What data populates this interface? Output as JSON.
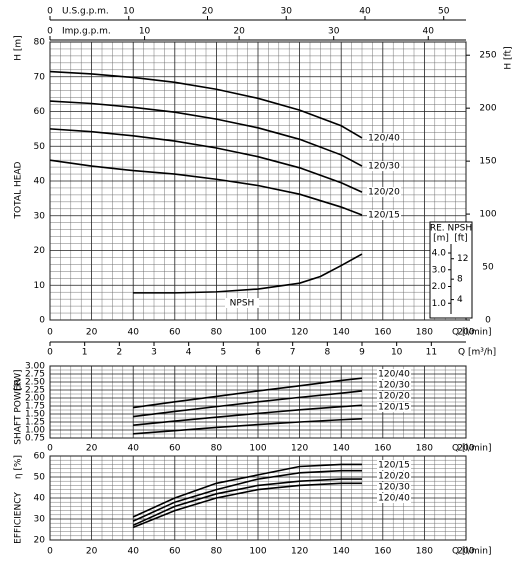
{
  "chart_data": [
    {
      "type": "line",
      "y_title": "H [m]",
      "y_label": "TOTAL HEAD",
      "y2_title": "H [ft]",
      "x_label": "Q [l/min]",
      "xlim": [
        0,
        200
      ],
      "xticks": [
        0,
        20,
        40,
        60,
        80,
        100,
        120,
        140,
        160,
        180,
        200
      ],
      "ylim": [
        0,
        80
      ],
      "yticks": [
        0,
        10,
        20,
        30,
        40,
        50,
        60,
        70,
        80
      ],
      "y2lim": [
        0,
        262.47
      ],
      "y2ticks": [
        0,
        50,
        100,
        150,
        200,
        250
      ],
      "grid": true,
      "x_minor_divisions": 4,
      "y_minor_divisions": 5,
      "x_top_axes": [
        {
          "label": "U.S.g.p.m.",
          "lim": [
            0,
            52.83
          ],
          "ticks": [
            0,
            10,
            20,
            30,
            40,
            50
          ]
        },
        {
          "label": "Imp.g.p.m.",
          "lim": [
            0,
            43.99
          ],
          "ticks": [
            0,
            10,
            20,
            30,
            40
          ]
        }
      ],
      "x_bottom2": {
        "label": "Q [m³/h]",
        "lim": [
          0,
          12
        ],
        "ticks": [
          0,
          1,
          2,
          3,
          4,
          5,
          6,
          7,
          8,
          9,
          10,
          11
        ]
      },
      "npsh_axis": {
        "title": "RE. NPSH",
        "unit_m": "[m]",
        "unit_ft": "[ft]",
        "lim": [
          0,
          16.6
        ],
        "ticks": [
          {
            "value": 1,
            "label": "1.0"
          },
          {
            "value": 2,
            "label": "2.0"
          },
          {
            "value": 3,
            "label": "3.0"
          },
          {
            "value": 4,
            "label": "4.0"
          }
        ],
        "ft_lim": [
          0,
          54.46
        ],
        "ft_ticks": [
          4,
          8,
          12
        ]
      },
      "series": [
        {
          "name": "120/40",
          "color": "#000000",
          "x": [
            0,
            20,
            40,
            60,
            80,
            100,
            120,
            140,
            150
          ],
          "values": [
            71.5,
            70.8,
            69.8,
            68.4,
            66.4,
            63.8,
            60.4,
            55.9,
            52.4
          ]
        },
        {
          "name": "120/30",
          "color": "#000000",
          "x": [
            0,
            20,
            40,
            60,
            80,
            100,
            120,
            140,
            150
          ],
          "values": [
            63,
            62.3,
            61.2,
            59.8,
            57.8,
            55.3,
            52,
            47.5,
            44.3
          ]
        },
        {
          "name": "120/20",
          "color": "#000000",
          "x": [
            0,
            20,
            40,
            60,
            80,
            100,
            120,
            140,
            150
          ],
          "values": [
            55,
            54.2,
            53,
            51.5,
            49.5,
            47,
            43.8,
            39.5,
            36.8
          ]
        },
        {
          "name": "120/15",
          "color": "#000000",
          "x": [
            0,
            20,
            40,
            60,
            80,
            100,
            120,
            140,
            150
          ],
          "values": [
            46,
            44.3,
            43,
            42,
            40.5,
            38.7,
            36.2,
            32.5,
            30.2
          ]
        },
        {
          "name": "NPSH",
          "color": "#000000",
          "axis": "npsh",
          "x": [
            40,
            60,
            80,
            100,
            120,
            130,
            140,
            150
          ],
          "values": [
            1.62,
            1.62,
            1.68,
            1.85,
            2.2,
            2.6,
            3.25,
            3.94
          ]
        }
      ]
    },
    {
      "type": "line",
      "y_title": "[kW]",
      "y_label": "SHAFT POWER",
      "x_label": "Q [l/min]",
      "xlim": [
        0,
        200
      ],
      "xticks": [
        0,
        20,
        40,
        60,
        80,
        100,
        120,
        140,
        160,
        180,
        200
      ],
      "ylim": [
        0.75,
        3
      ],
      "yticks": [
        0.75,
        {
          "value": 1,
          "label": "1.00"
        },
        1.25,
        {
          "value": 1.5,
          "label": "1.50"
        },
        1.75,
        {
          "value": 2,
          "label": "2.00"
        },
        2.25,
        {
          "value": 2.5,
          "label": "2.50"
        },
        2.75,
        {
          "value": 3,
          "label": "3.00"
        }
      ],
      "grid": true,
      "x_minor_divisions": 4,
      "y_minor_divisions": 2,
      "series": [
        {
          "name": "120/40",
          "color": "#000000",
          "x": [
            40,
            60,
            80,
            100,
            120,
            140,
            150
          ],
          "values": [
            1.7,
            1.88,
            2.05,
            2.22,
            2.38,
            2.55,
            2.62
          ]
        },
        {
          "name": "120/30",
          "color": "#000000",
          "x": [
            40,
            60,
            80,
            100,
            120,
            140,
            150
          ],
          "values": [
            1.42,
            1.58,
            1.73,
            1.88,
            2.02,
            2.15,
            2.22
          ]
        },
        {
          "name": "120/20",
          "color": "#000000",
          "x": [
            40,
            60,
            80,
            100,
            120,
            140,
            150
          ],
          "values": [
            1.15,
            1.28,
            1.4,
            1.52,
            1.63,
            1.73,
            1.77
          ]
        },
        {
          "name": "120/15",
          "color": "#000000",
          "x": [
            40,
            60,
            80,
            100,
            120,
            140,
            150
          ],
          "values": [
            0.88,
            0.98,
            1.08,
            1.17,
            1.25,
            1.32,
            1.35
          ]
        }
      ]
    },
    {
      "type": "line",
      "y_title": "η [%]",
      "y_label": "EFFICIENCY",
      "x_label": "Q [l/min]",
      "xlim": [
        0,
        200
      ],
      "xticks": [
        0,
        20,
        40,
        60,
        80,
        100,
        120,
        140,
        160,
        180,
        200
      ],
      "ylim": [
        20,
        60
      ],
      "yticks": [
        20,
        30,
        40,
        50,
        60
      ],
      "grid": true,
      "x_minor_divisions": 4,
      "y_minor_divisions": 5,
      "series": [
        {
          "name": "120/15",
          "color": "#000000",
          "x": [
            40,
            60,
            80,
            100,
            120,
            140,
            150
          ],
          "values": [
            31,
            40,
            47,
            51,
            55,
            56,
            56
          ]
        },
        {
          "name": "120/20",
          "color": "#000000",
          "x": [
            40,
            60,
            80,
            100,
            120,
            140,
            150
          ],
          "values": [
            29,
            38,
            44,
            49,
            52,
            53,
            53
          ]
        },
        {
          "name": "120/30",
          "color": "#000000",
          "x": [
            40,
            60,
            80,
            100,
            120,
            140,
            150
          ],
          "values": [
            27,
            36,
            42,
            46,
            48,
            49,
            49
          ]
        },
        {
          "name": "120/40",
          "color": "#000000",
          "x": [
            40,
            60,
            80,
            100,
            120,
            140,
            150
          ],
          "values": [
            26,
            34,
            40,
            44,
            46,
            47,
            47
          ]
        }
      ]
    }
  ]
}
